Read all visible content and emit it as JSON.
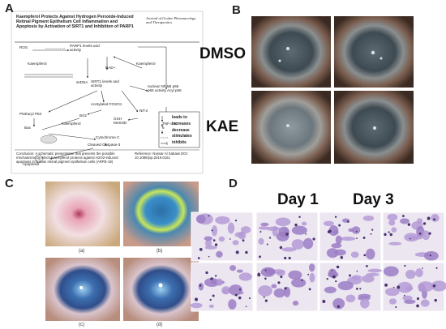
{
  "panels": {
    "a": {
      "label": "A",
      "header": {
        "title": "Kaempferol Protects Against Hydrogen Peroxide-Induced Retinal Pigment Epithelium Cell Inflammation and Apoptosis by Activation of SIRT1 and Inhibition of PARP1",
        "journal": "Journal of Ocular Pharmacology and Therapeutics"
      },
      "nodes": [
        "ROS",
        "PARP1 levels and activity",
        "NAD+",
        "Kaempferol",
        "Kaempferol",
        "ssDNA",
        "SIRT1 levels and activity",
        "nuclear NF-kB p65 p65 activity Acyl p65",
        "P53/acyl P53",
        "Acetylated FOXO1",
        "Nrf-2",
        "GSH MnSOD",
        "Bcl2",
        "Bax",
        "Kaempferol",
        "TNF-α IL-6",
        "Cytochrome C",
        "Cleaved Caspase-3",
        "Apoptosis"
      ],
      "legend": [
        "leads to",
        "increases",
        "decrease",
        "stimulates",
        "inhibits"
      ],
      "conclusion": "Conclusion: A schematic presentation that presents the possible mechanisms by which Kaempferol protects against H2O2-induced apoptosis in human retinal pigment epithelium cells (ARPE-19)",
      "reference": "Reference: Nassar Al Sabawi DOI: 10.1089/jop.2019.0151"
    },
    "b": {
      "label": "B",
      "rows": [
        "DMSO",
        "KAE"
      ]
    },
    "c": {
      "label": "C",
      "captions": [
        "(a)",
        "(b)",
        "(c)",
        "(d)"
      ]
    },
    "d": {
      "label": "D",
      "columns": [
        "Day 1",
        "Day 3"
      ]
    }
  }
}
